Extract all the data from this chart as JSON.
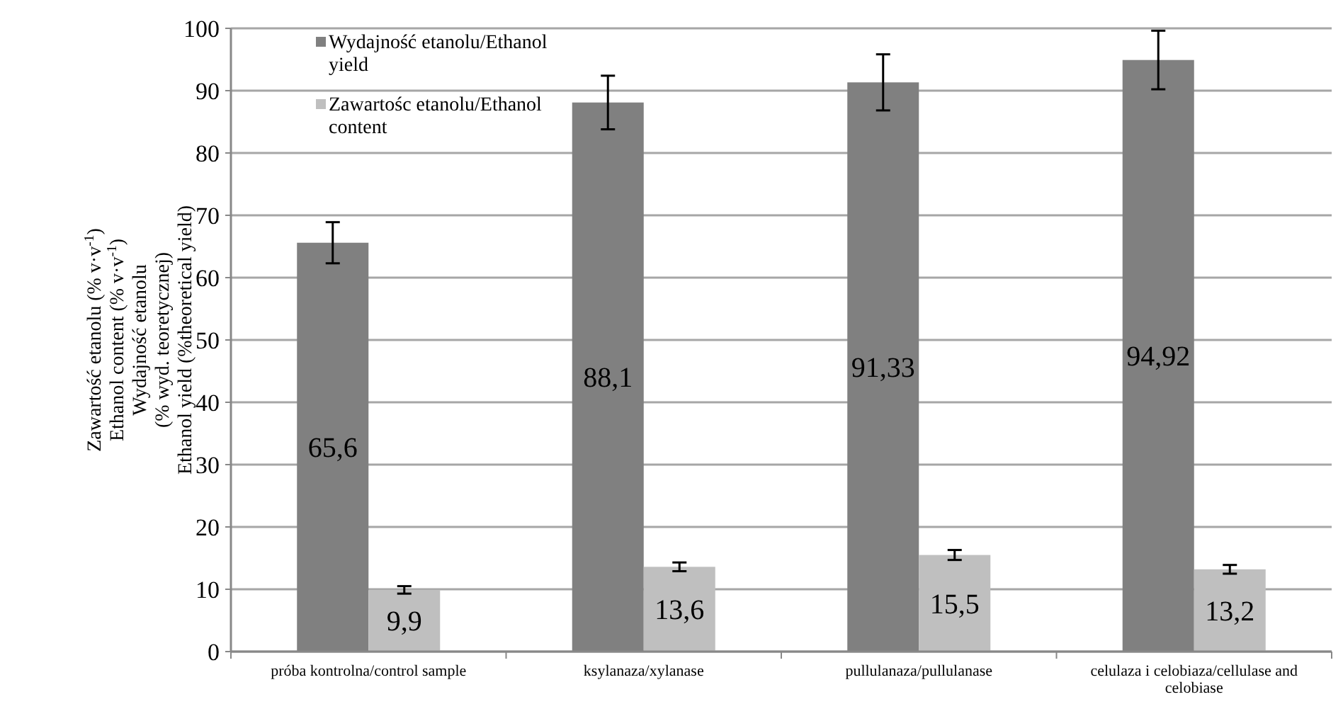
{
  "chart_data": {
    "type": "bar",
    "ylabel": "Zawartość etanolu  (% v·v$^{-1}$)\nEthanol content (% v·v$^{-1}$)\nWydajność etanolu\n(% wyd. teoretycznej)\nEthanol yield (%theoretical yield)",
    "categories": [
      "próba kontrolna/control sample",
      "ksylanaza/xylanase",
      "pullulanaza/pullulanase",
      "celulaza i celobiaza/cellulase and celobiase"
    ],
    "series": [
      {
        "name": "Wydajność etanolu/Ethanol yield",
        "color": "#808080",
        "values": [
          65.6,
          88.1,
          91.33,
          94.92
        ],
        "errors": [
          3.3,
          4.3,
          4.5,
          4.7
        ],
        "value_labels": [
          "65,6",
          "88,1",
          "91,33",
          "94,92"
        ]
      },
      {
        "name": "Zawartośc etanolu/Ethanol content",
        "color": "#bfbfbf",
        "values": [
          9.9,
          13.6,
          15.5,
          13.2
        ],
        "errors": [
          0.6,
          0.7,
          0.8,
          0.7
        ],
        "value_labels": [
          "9,9",
          "13,6",
          "15,5",
          "13,2"
        ]
      }
    ],
    "ylim": [
      0,
      100
    ],
    "yticks": [
      0,
      10,
      20,
      30,
      40,
      50,
      60,
      70,
      80,
      90,
      100
    ],
    "grid": "y",
    "legend": "top left"
  }
}
